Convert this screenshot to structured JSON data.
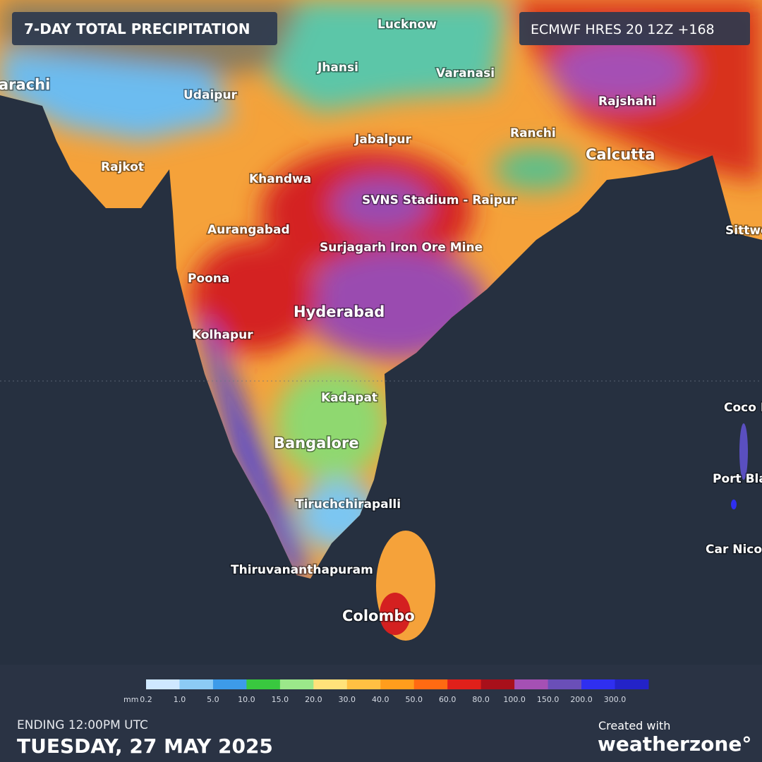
{
  "header": {
    "title": "7-DAY TOTAL PRECIPITATION",
    "model": "ECMWF HRES 20 12Z +168"
  },
  "places": [
    "Lucknow",
    "Jhansi",
    "Varanasi",
    "arachi",
    "Udaipur",
    "Rajshahi",
    "Jabalpur",
    "Ranchi",
    "Calcutta",
    "Rajkot",
    "Khandwa",
    "SVNS Stadium - Raipur",
    "Aurangabad",
    "Surjagarh Iron Ore Mine",
    "Poona",
    "Hyderabad",
    "Kolhapur",
    "Kadapat",
    "Bangalore",
    "Tiruchchirapalli",
    "Thiruvananthapuram",
    "Colombo",
    "Sittwe",
    "Coco I",
    "Port Bla",
    "Car Nicob"
  ],
  "legend": {
    "unit": "mm",
    "colors": [
      "#cfe8ff",
      "#8ccbf5",
      "#3d9be9",
      "#39c83f",
      "#9be88a",
      "#ffe27a",
      "#ffc043",
      "#ff9d1c",
      "#ff6a12",
      "#e0201a",
      "#a8101a",
      "#a550b4",
      "#6a4fb8",
      "#2f2ff0",
      "#2323c8"
    ],
    "ticks": [
      0.2,
      {
        "value": 1,
        "label": "1.0"
      },
      {
        "value": 5,
        "label": "5.0"
      },
      {
        "value": 10,
        "label": "10.0"
      },
      {
        "value": 15,
        "label": "15.0"
      },
      {
        "value": 20,
        "label": "20.0"
      },
      {
        "value": 30,
        "label": "30.0"
      },
      {
        "value": 40,
        "label": "40.0"
      },
      {
        "value": 50,
        "label": "50.0"
      },
      {
        "value": 60,
        "label": "60.0"
      },
      {
        "value": 80,
        "label": "80.0"
      },
      {
        "value": 100,
        "label": "100.0"
      },
      {
        "value": 150,
        "label": "150.0"
      },
      {
        "value": 200,
        "label": "200.0"
      },
      {
        "value": 300,
        "label": "300.0"
      }
    ]
  },
  "footer": {
    "ending": "ENDING 12:00PM UTC",
    "date": "TUESDAY, 27 MAY 2025",
    "credit": "Created with",
    "brand": "weatherzone°"
  }
}
